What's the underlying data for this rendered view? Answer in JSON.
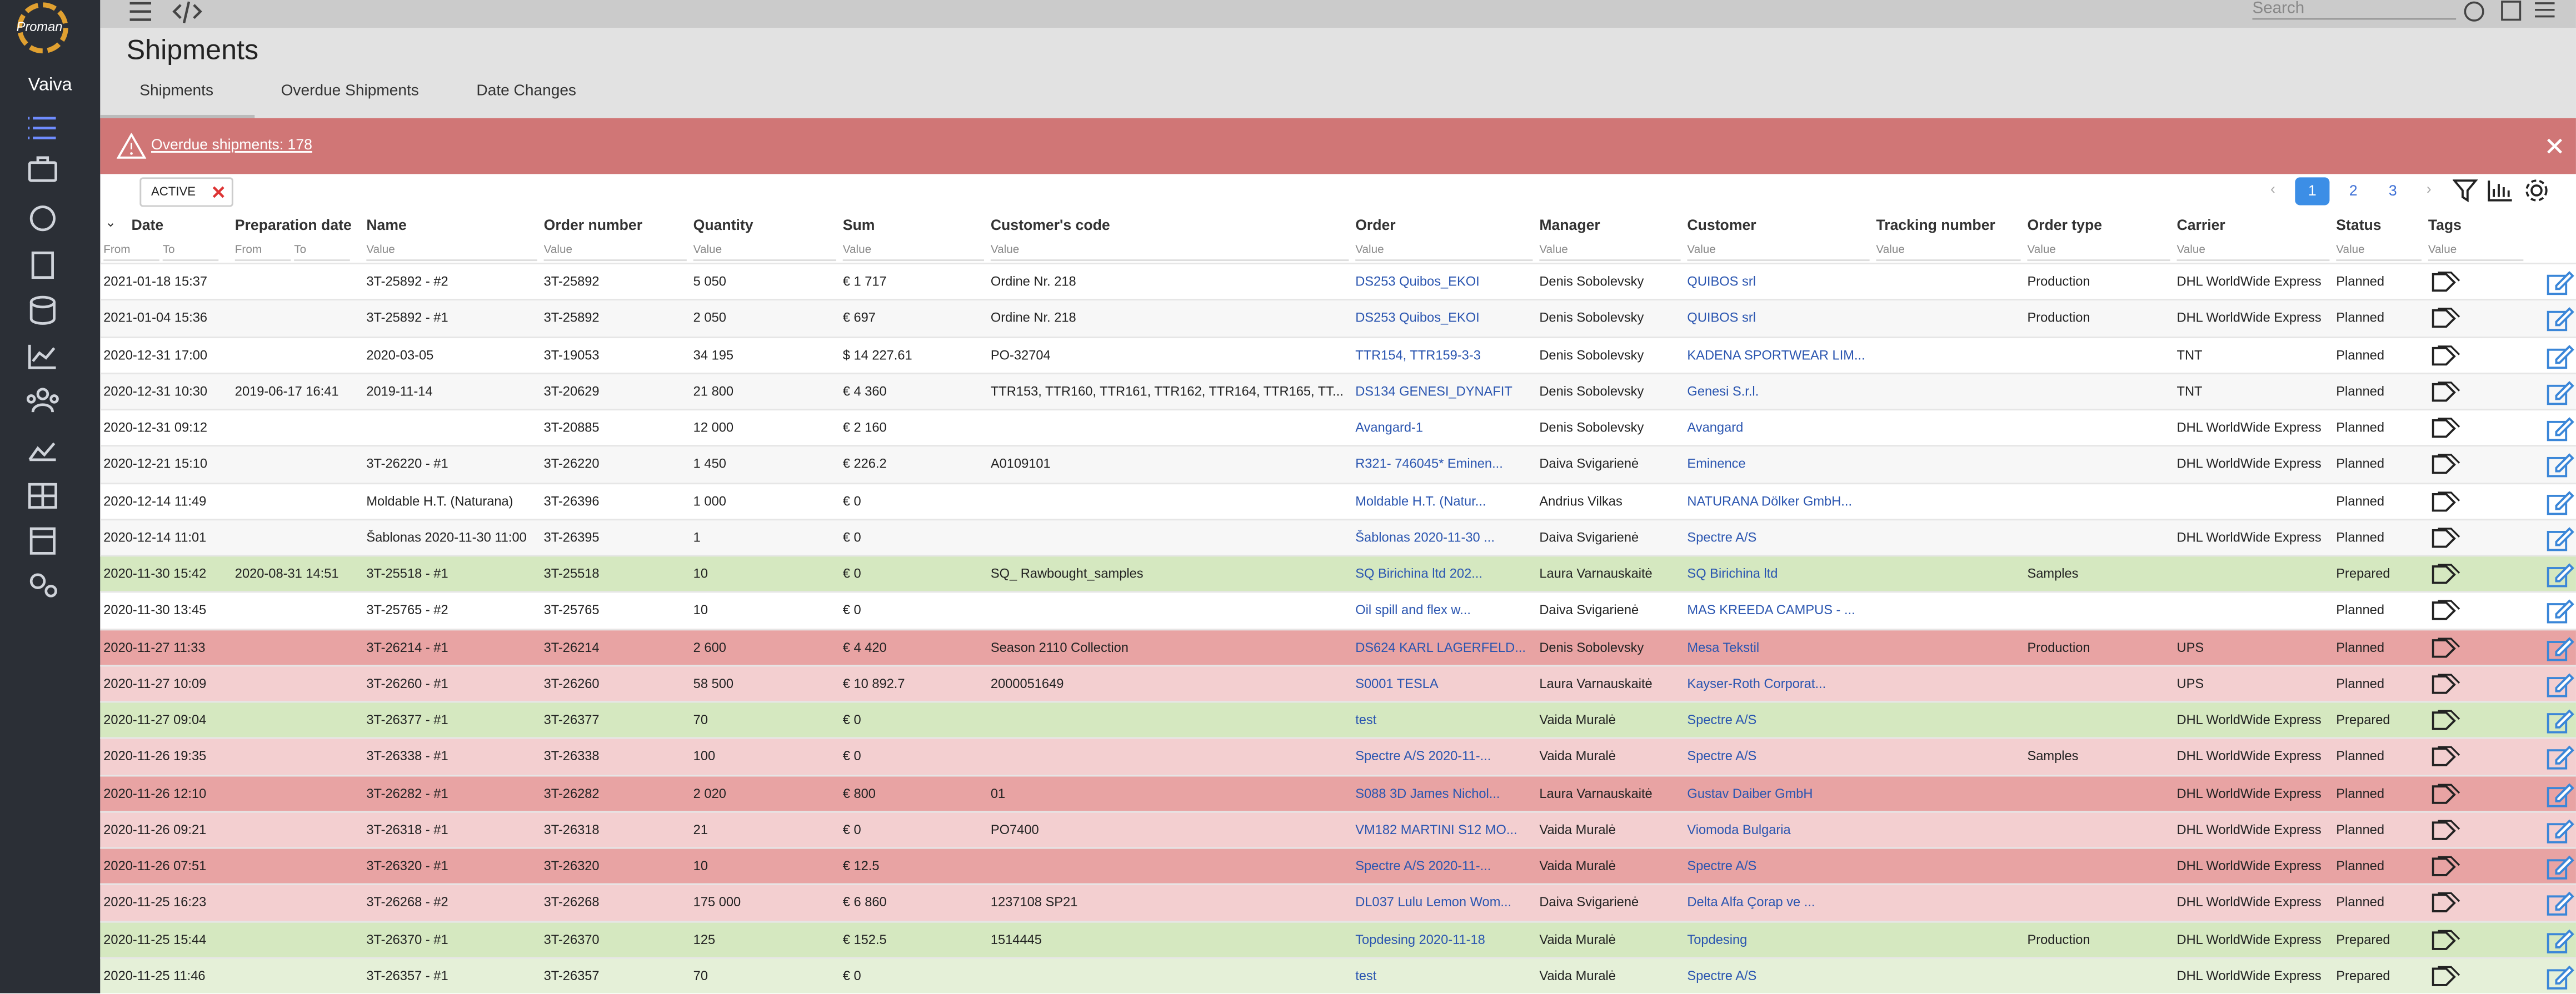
{
  "app": {
    "logo": "Proman",
    "user": "Vaiva",
    "search_placeholder": "Search"
  },
  "page": {
    "title": "Shipments",
    "tabs": [
      "Shipments",
      "Overdue Shipments",
      "Date Changes"
    ]
  },
  "alert": "Overdue shipments: 178",
  "filter_chip": "ACTIVE",
  "pagination": [
    "1",
    "2",
    "3"
  ],
  "table": {
    "columns": [
      "Date",
      "Preparation date",
      "Name",
      "Order number",
      "Quantity",
      "Sum",
      "Customer's code",
      "Order",
      "Manager",
      "Customer",
      "Tracking number",
      "Order type",
      "Carrier",
      "Status",
      "Tags"
    ],
    "filters": [
      [
        "From",
        "To"
      ],
      [
        "From",
        "To"
      ],
      [
        "Value"
      ],
      [
        "Value"
      ],
      [
        "Value"
      ],
      [
        "Value"
      ],
      [
        "Value"
      ],
      [
        "Value"
      ],
      [
        "Value"
      ],
      [
        "Value"
      ],
      [
        "Value"
      ],
      [
        "Value"
      ],
      [
        "Value"
      ],
      [
        "Value"
      ],
      [
        "Value"
      ]
    ],
    "rows": [
      {
        "color": "#ffffff",
        "cells": [
          "2021-01-18 15:37",
          null,
          "3T-25892 - #2",
          "3T-25892",
          "5 050",
          "€ 1 717",
          "Ordine Nr. 218",
          "DS253 Quibos_EKOI",
          "Denis Sobolevsky",
          "QUIBOS srl",
          null,
          "Production",
          "DHL WorldWide Express",
          "Planned"
        ]
      },
      {
        "color": "#f7f7f7",
        "cells": [
          "2021-01-04 15:36",
          null,
          "3T-25892 - #1",
          "3T-25892",
          "2 050",
          "€ 697",
          "Ordine Nr. 218",
          "DS253 Quibos_EKOI",
          "Denis Sobolevsky",
          "QUIBOS srl",
          null,
          "Production",
          "DHL WorldWide Express",
          "Planned"
        ]
      },
      {
        "color": "#ffffff",
        "cells": [
          "2020-12-31 17:00",
          null,
          "2020-03-05",
          "3T-19053",
          "34 195",
          "$ 14 227.61",
          "PO-32704",
          "TTR154, TTR159-3-3",
          "Denis Sobolevsky",
          "KADENA SPORTWEAR LIM...",
          null,
          null,
          "TNT",
          "Planned"
        ]
      },
      {
        "color": "#f7f7f7",
        "cells": [
          "2020-12-31 10:30",
          "2019-06-17 16:41",
          "2019-11-14",
          "3T-20629",
          "21 800",
          "€ 4 360",
          "TTR153, TTR160, TTR161, TTR162, TTR164, TTR165, TT...",
          "DS134 GENESI_DYNAFIT",
          "Denis Sobolevsky",
          "Genesi S.r.l.",
          null,
          null,
          "TNT",
          "Planned"
        ]
      },
      {
        "color": "#ffffff",
        "cells": [
          "2020-12-31 09:12",
          null,
          null,
          "3T-20885",
          "12 000",
          "€ 2 160",
          null,
          "Avangard-1",
          "Denis Sobolevsky",
          "Avangard",
          null,
          null,
          "DHL WorldWide Express",
          "Planned"
        ]
      },
      {
        "color": "#f7f7f7",
        "cells": [
          "2020-12-21 15:10",
          null,
          "3T-26220 - #1",
          "3T-26220",
          "1 450",
          "€ 226.2",
          "A0109101",
          "R321- 746045* Eminen...",
          "Daiva Svigarienė",
          "Eminence",
          null,
          null,
          "DHL WorldWide Express",
          "Planned"
        ]
      },
      {
        "color": "#ffffff",
        "cells": [
          "2020-12-14 11:49",
          null,
          "Moldable H.T. (Naturana)",
          "3T-26396",
          "1 000",
          "€ 0",
          null,
          "Moldable H.T. (Natur...",
          "Andrius Vilkas",
          "NATURANA Dölker GmbH...",
          null,
          null,
          null,
          "Planned"
        ]
      },
      {
        "color": "#f7f7f7",
        "cells": [
          "2020-12-14 11:01",
          null,
          "Šablonas 2020-11-30 11:00",
          "3T-26395",
          "1",
          "€ 0",
          null,
          "Šablonas 2020-11-30 ...",
          "Daiva Svigarienė",
          "Spectre A/S",
          null,
          null,
          "DHL WorldWide Express",
          "Planned"
        ]
      },
      {
        "color": "#d5e8c0",
        "cells": [
          "2020-11-30 15:42",
          "2020-08-31 14:51",
          "3T-25518 - #1",
          "3T-25518",
          "10",
          "€ 0",
          "SQ_ Rawbought_samples",
          "SQ Birichina ltd 202...",
          "Laura Varnauskaitė",
          "SQ Birichina ltd",
          null,
          "Samples",
          null,
          "Prepared"
        ]
      },
      {
        "color": "#ffffff",
        "cells": [
          "2020-11-30 13:45",
          null,
          "3T-25765 - #2",
          "3T-25765",
          "10",
          "€ 0",
          null,
          "Oil spill and flex w...",
          "Daiva Svigarienė",
          "MAS KREEDA CAMPUS - ...",
          null,
          null,
          null,
          "Planned"
        ]
      },
      {
        "color": "#e8a3a3",
        "cells": [
          "2020-11-27 11:33",
          null,
          "3T-26214 - #1",
          "3T-26214",
          "2 600",
          "€ 4 420",
          "Season 2110 Collection",
          "DS624 KARL LAGERFELD...",
          "Denis Sobolevsky",
          "Mesa Tekstil",
          null,
          "Production",
          "UPS",
          "Planned"
        ]
      },
      {
        "color": "#f3cfd0",
        "cells": [
          "2020-11-27 10:09",
          null,
          "3T-26260 - #1",
          "3T-26260",
          "58 500",
          "€ 10 892.7",
          "2000051649",
          "S0001 TESLA",
          "Laura Varnauskaitė",
          "Kayser-Roth Corporat...",
          null,
          null,
          "UPS",
          "Planned"
        ]
      },
      {
        "color": "#d5e8c0",
        "cells": [
          "2020-11-27 09:04",
          null,
          "3T-26377 - #1",
          "3T-26377",
          "70",
          "€ 0",
          null,
          "test",
          "Vaida Muralė",
          "Spectre A/S",
          null,
          null,
          "DHL WorldWide Express",
          "Prepared"
        ]
      },
      {
        "color": "#f3cfd0",
        "cells": [
          "2020-11-26 19:35",
          null,
          "3T-26338 - #1",
          "3T-26338",
          "100",
          "€ 0",
          null,
          "Spectre A/S 2020-11-...",
          "Vaida Muralė",
          "Spectre A/S",
          null,
          "Samples",
          "DHL WorldWide Express",
          "Planned"
        ]
      },
      {
        "color": "#e8a3a3",
        "cells": [
          "2020-11-26 12:10",
          null,
          "3T-26282 - #1",
          "3T-26282",
          "2 020",
          "€ 800",
          "01",
          "S088 3D James Nichol...",
          "Laura Varnauskaitė",
          "Gustav Daiber GmbH",
          null,
          null,
          "DHL WorldWide Express",
          "Planned"
        ]
      },
      {
        "color": "#f3cfd0",
        "cells": [
          "2020-11-26 09:21",
          null,
          "3T-26318 - #1",
          "3T-26318",
          "21",
          "€ 0",
          "PO7400",
          "VM182 MARTINI S12 MO...",
          "Vaida Muralė",
          "Viomoda Bulgaria",
          null,
          null,
          "DHL WorldWide Express",
          "Planned"
        ]
      },
      {
        "color": "#e8a3a3",
        "cells": [
          "2020-11-26 07:51",
          null,
          "3T-26320 - #1",
          "3T-26320",
          "10",
          "€ 12.5",
          null,
          "Spectre A/S 2020-11-...",
          "Vaida Muralė",
          "Spectre A/S",
          null,
          null,
          "DHL WorldWide Express",
          "Planned"
        ]
      },
      {
        "color": "#f3cfd0",
        "cells": [
          "2020-11-25 16:23",
          null,
          "3T-26268 - #2",
          "3T-26268",
          "175 000",
          "€ 6 860",
          "1237108 SP21",
          "DL037 Lulu Lemon Wom...",
          "Daiva Svigarienė",
          "Delta Alfa Çorap ve ...",
          null,
          null,
          "DHL WorldWide Express",
          "Planned"
        ]
      },
      {
        "color": "#d5e8c0",
        "cells": [
          "2020-11-25 15:44",
          null,
          "3T-26370 - #1",
          "3T-26370",
          "125",
          "€ 152.5",
          "1514445",
          "Topdesing 2020-11-18",
          "Vaida Muralė",
          "Topdesing",
          null,
          "Production",
          "DHL WorldWide Express",
          "Prepared"
        ]
      },
      {
        "color": "#e5f0d8",
        "cells": [
          "2020-11-25 11:46",
          null,
          "3T-26357 - #1",
          "3T-26357",
          "70",
          "€ 0",
          null,
          "test",
          "Vaida Muralė",
          "Spectre A/S",
          null,
          null,
          "DHL WorldWide Express",
          "Prepared"
        ]
      }
    ]
  }
}
